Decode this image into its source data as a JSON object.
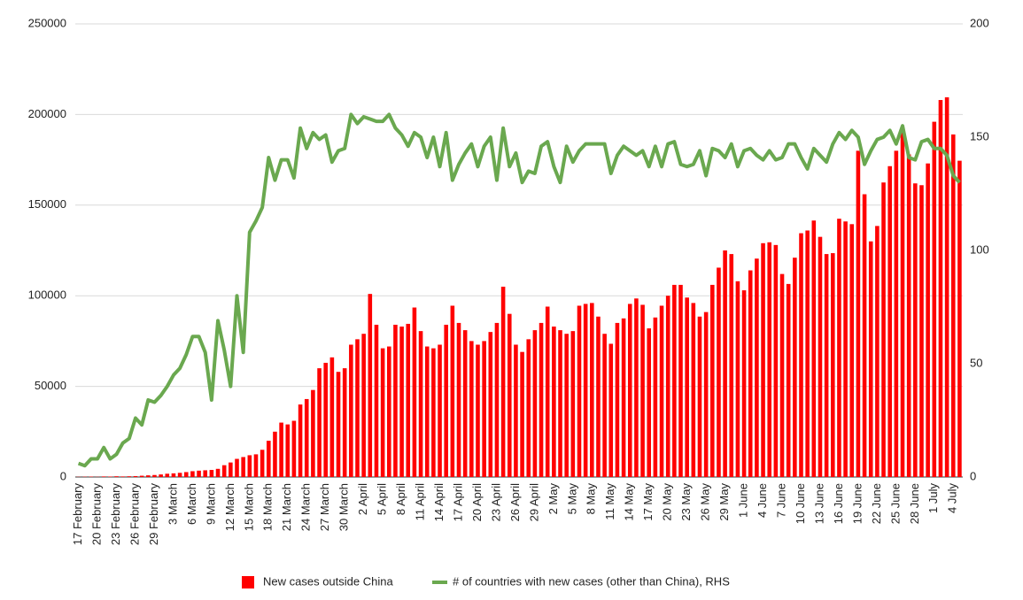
{
  "chart_data": {
    "type": "bar",
    "categories": [
      "17 February",
      null,
      null,
      "20 February",
      null,
      null,
      "23 February",
      null,
      null,
      "26 February",
      null,
      null,
      "29 February",
      null,
      null,
      "3 March",
      null,
      null,
      "6 March",
      null,
      null,
      "9 March",
      null,
      null,
      "12 March",
      null,
      null,
      "15 March",
      null,
      null,
      "18 March",
      null,
      null,
      "21 March",
      null,
      null,
      "24 March",
      null,
      null,
      "27 March",
      null,
      null,
      "30 March",
      null,
      null,
      "2 April",
      null,
      null,
      "5 April",
      null,
      null,
      "8 April",
      null,
      null,
      "11 April",
      null,
      null,
      "14 April",
      null,
      null,
      "17 April",
      null,
      null,
      "20 April",
      null,
      null,
      "23 April",
      null,
      null,
      "26 April",
      null,
      null,
      "29 April",
      null,
      null,
      "2 May",
      null,
      null,
      "5 May",
      null,
      null,
      "8 May",
      null,
      null,
      "11 May",
      null,
      null,
      "14 May",
      null,
      null,
      "17 May",
      null,
      null,
      "20 May",
      null,
      null,
      "23 May",
      null,
      null,
      "26 May",
      null,
      null,
      "29 May",
      null,
      null,
      "1 June",
      null,
      null,
      "4 June",
      null,
      null,
      "7 June",
      null,
      null,
      "10 June",
      null,
      null,
      "13 June",
      null,
      null,
      "16 June",
      null,
      null,
      "19 June",
      null,
      null,
      "22 June",
      null,
      null,
      "25 June",
      null,
      null,
      "28 June",
      null,
      null,
      "1 July",
      null,
      null,
      "4 July",
      null
    ],
    "series": [
      {
        "name": "New cases outside China",
        "type": "bar",
        "color": "#ff0000",
        "values": [
          100,
          150,
          200,
          100,
          300,
          250,
          400,
          300,
          400,
          500,
          700,
          900,
          1100,
          1400,
          1800,
          2000,
          2300,
          2700,
          3200,
          3500,
          3700,
          3900,
          4500,
          6500,
          8000,
          10000,
          11000,
          12000,
          12500,
          15000,
          20000,
          25000,
          30000,
          29000,
          31000,
          40000,
          43000,
          48000,
          60000,
          63000,
          66000,
          58000,
          60000,
          73000,
          76000,
          79000,
          101000,
          84000,
          71000,
          72000,
          84000,
          83000,
          84500,
          93500,
          80500,
          72000,
          71000,
          73000,
          84000,
          94500,
          85000,
          81000,
          75000,
          73000,
          75000,
          80000,
          85000,
          105000,
          90000,
          73000,
          69000,
          76000,
          81000,
          85000,
          94000,
          83000,
          81000,
          79000,
          80500,
          94500,
          95500,
          96000,
          88500,
          79000,
          73500,
          85000,
          87500,
          95500,
          98500,
          95000,
          82000,
          88000,
          94500,
          100000,
          106000,
          106000,
          99000,
          96000,
          88500,
          91000,
          106000,
          115500,
          125000,
          123000,
          108000,
          103000,
          114000,
          120500,
          129000,
          129500,
          128000,
          112000,
          106500,
          121000,
          134500,
          136000,
          141500,
          132500,
          123000,
          123500,
          142500,
          141000,
          139500,
          180000,
          156000,
          130000,
          138500,
          162500,
          171500,
          180000,
          190000,
          178000,
          162000,
          161000,
          173000,
          196000,
          208000,
          209500,
          189000,
          174500
        ]
      },
      {
        "name": "# of countries with new cases (other than China), RHS",
        "type": "line",
        "axis": "y2",
        "color": "#6aa84f",
        "values": [
          6,
          5,
          8,
          8,
          13,
          8,
          10,
          15,
          17,
          26,
          23,
          34,
          33,
          36,
          40,
          45,
          48,
          54,
          62,
          62,
          55,
          34,
          69,
          56,
          40,
          80,
          55,
          108,
          113,
          119,
          141,
          131,
          140,
          140,
          132,
          154,
          145,
          152,
          149,
          151,
          139,
          144,
          145,
          160,
          156,
          159,
          158,
          157,
          157,
          160,
          154,
          151,
          146,
          152,
          150,
          141,
          150,
          137,
          152,
          131,
          138,
          143,
          147,
          137,
          146,
          150,
          131,
          154,
          137,
          143,
          130,
          135,
          134,
          146,
          148,
          137,
          130,
          146,
          139,
          144,
          147,
          147,
          147,
          147,
          134,
          142,
          146,
          144,
          142,
          144,
          137,
          146,
          137,
          147,
          148,
          138,
          137,
          138,
          144,
          133,
          145,
          144,
          141,
          147,
          137,
          144,
          145,
          142,
          140,
          144,
          140,
          141,
          147,
          147,
          141,
          136,
          145,
          142,
          139,
          147,
          152,
          149,
          153,
          150,
          138,
          144,
          149,
          150,
          153,
          147,
          155,
          141,
          140,
          148,
          149,
          145,
          145,
          142,
          133,
          130
        ]
      }
    ],
    "ylim": [
      0,
      250000
    ],
    "yticks": [
      0,
      50000,
      100000,
      150000,
      200000,
      250000
    ],
    "y2lim": [
      0,
      200
    ],
    "y2ticks": [
      0,
      50,
      100,
      150,
      200
    ],
    "grid": true,
    "legend": "bottom"
  }
}
